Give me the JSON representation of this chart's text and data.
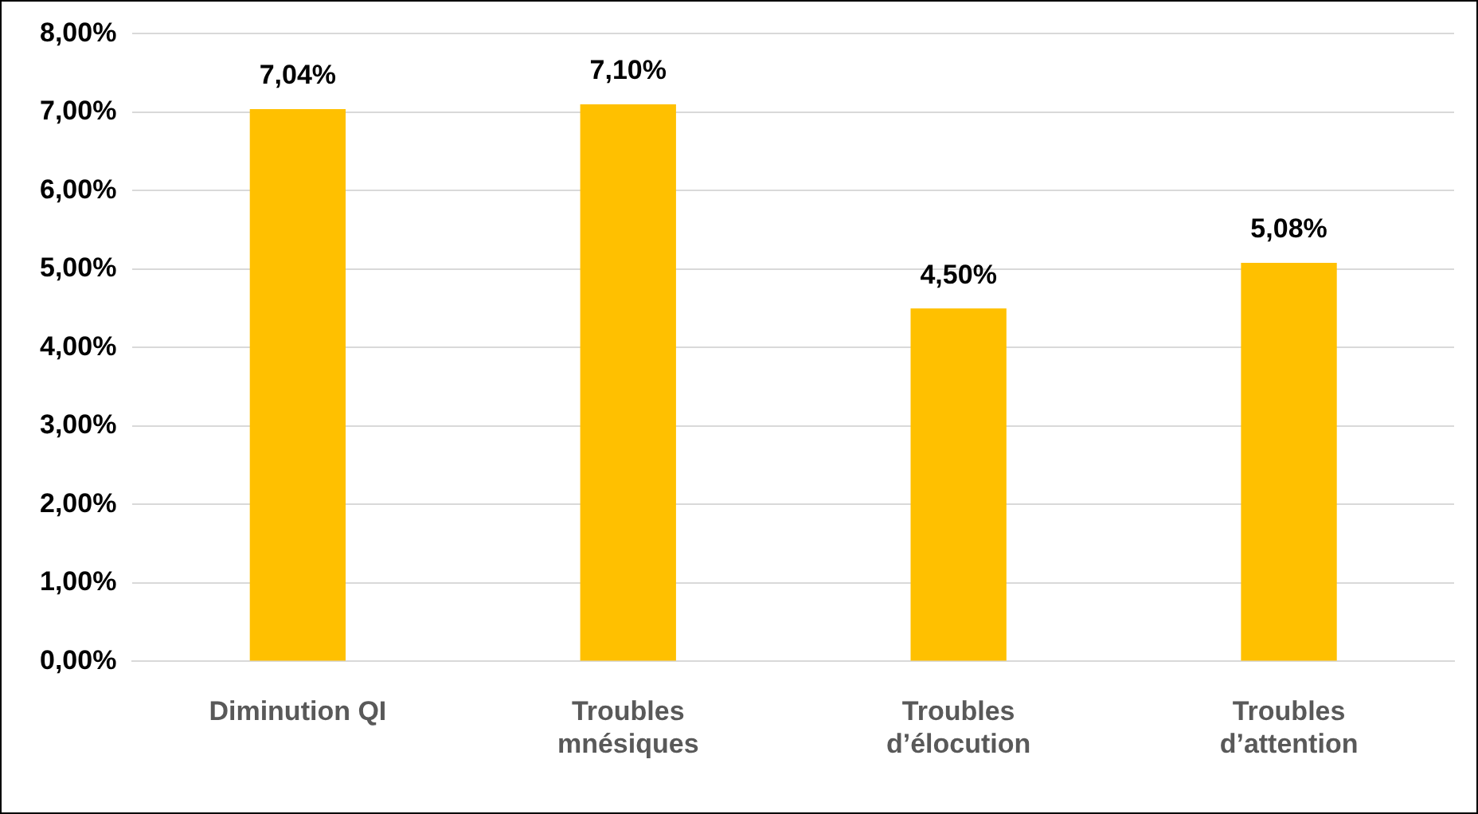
{
  "chart_data": {
    "type": "bar",
    "categories": [
      "Diminution QI",
      "Troubles mnésiques",
      "Troubles d’élocution",
      "Troubles d’attention"
    ],
    "values": [
      7.04,
      7.1,
      4.5,
      5.08
    ],
    "color": "#ffc000",
    "value_labels": [
      "7,04%",
      "7,10%",
      "4,50%",
      "5,08%"
    ],
    "ylim": [
      0,
      8
    ],
    "yticks": [
      {
        "value": 0,
        "label": "0,00%"
      },
      {
        "value": 1,
        "label": "1,00%"
      },
      {
        "value": 2,
        "label": "2,00%"
      },
      {
        "value": 3,
        "label": "3,00%"
      },
      {
        "value": 4,
        "label": "4,00%"
      },
      {
        "value": 5,
        "label": "5,00%"
      },
      {
        "value": 6,
        "label": "6,00%"
      },
      {
        "value": 7,
        "label": "7,00%"
      },
      {
        "value": 8,
        "label": "8,00%"
      }
    ],
    "grid": "y",
    "legend": false
  }
}
